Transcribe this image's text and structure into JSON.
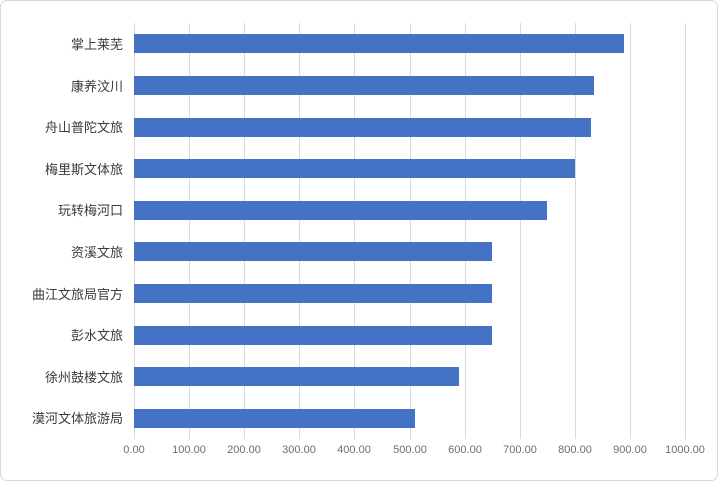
{
  "chart_data": {
    "type": "bar",
    "orientation": "horizontal",
    "title": "",
    "xlabel": "",
    "ylabel": "",
    "categories": [
      "掌上莱芜",
      "康养汶川",
      "舟山普陀文旅",
      "梅里斯文体旅",
      "玩转梅河口",
      "资溪文旅",
      "曲江文旅局官方",
      "彭水文旅",
      "徐州鼓楼文旅",
      "漠河文体旅游局"
    ],
    "values": [
      890,
      835,
      830,
      800,
      750,
      650,
      650,
      650,
      590,
      510
    ],
    "xlim": [
      0,
      1000
    ],
    "x_tick_interval": 100,
    "x_tick_labels": [
      "0.00",
      "100.00",
      "200.00",
      "300.00",
      "400.00",
      "500.00",
      "600.00",
      "700.00",
      "800.00",
      "900.00",
      "1000.00"
    ],
    "grid": "vertical-only",
    "legend": "none",
    "colors": {
      "bar": "#4472c4",
      "gridline": "#d9d9d9",
      "tick_label": "#6e6e6e",
      "category_label": "#3b3b3b",
      "frame_border": "#d9d9d9",
      "background": "#ffffff"
    }
  }
}
